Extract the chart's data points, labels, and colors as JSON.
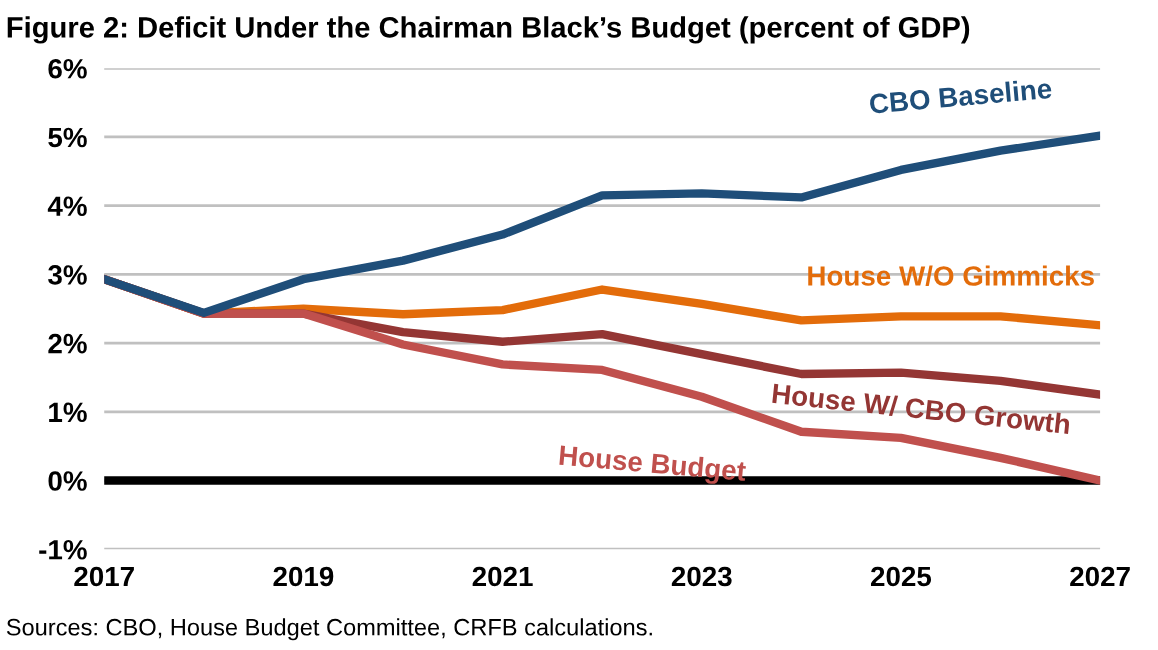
{
  "chart_data": {
    "type": "line",
    "title": "Figure 2: Deficit Under the Chairman Black’s Budget (percent of GDP)",
    "x": [
      2017,
      2018,
      2019,
      2020,
      2021,
      2022,
      2023,
      2024,
      2025,
      2026,
      2027
    ],
    "series": [
      {
        "name": "CBO Baseline",
        "color": "#1f4e79",
        "values": [
          2.93,
          2.44,
          2.93,
          3.2,
          3.58,
          4.15,
          4.18,
          4.12,
          4.52,
          4.8,
          5.02
        ]
      },
      {
        "name": "House W/O Gimmicks",
        "color": "#e36c0a",
        "values": [
          2.93,
          2.43,
          2.5,
          2.42,
          2.48,
          2.78,
          2.57,
          2.33,
          2.39,
          2.39,
          2.26
        ]
      },
      {
        "name": "House W/ CBO Growth",
        "color": "#943634",
        "values": [
          2.93,
          2.43,
          2.43,
          2.16,
          2.02,
          2.13,
          1.84,
          1.55,
          1.57,
          1.45,
          1.25
        ]
      },
      {
        "name": "House Budget",
        "color": "#c0504d",
        "values": [
          2.93,
          2.43,
          2.43,
          1.98,
          1.69,
          1.61,
          1.22,
          0.71,
          0.62,
          0.33,
          0.0
        ]
      }
    ],
    "xlim": [
      2017,
      2027
    ],
    "xticks": [
      2017,
      2019,
      2021,
      2023,
      2025,
      2027
    ],
    "ylim": [
      -1,
      6
    ],
    "yticks": [
      {
        "value": -1,
        "label": "-1%"
      },
      {
        "value": 0,
        "label": "0%"
      },
      {
        "value": 1,
        "label": "1%"
      },
      {
        "value": 2,
        "label": "2%"
      },
      {
        "value": 3,
        "label": "3%"
      },
      {
        "value": 4,
        "label": "4%"
      },
      {
        "value": 5,
        "label": "5%"
      },
      {
        "value": 6,
        "label": "6%"
      }
    ],
    "grid": "y",
    "legend": false,
    "marker": "none",
    "line_style": "solid",
    "ref_lines": [
      {
        "axis": "y",
        "value": 0,
        "color": "#000000"
      }
    ],
    "annotations": [
      "Sources: CBO, House Budget Committee, CRFB calculations."
    ]
  }
}
